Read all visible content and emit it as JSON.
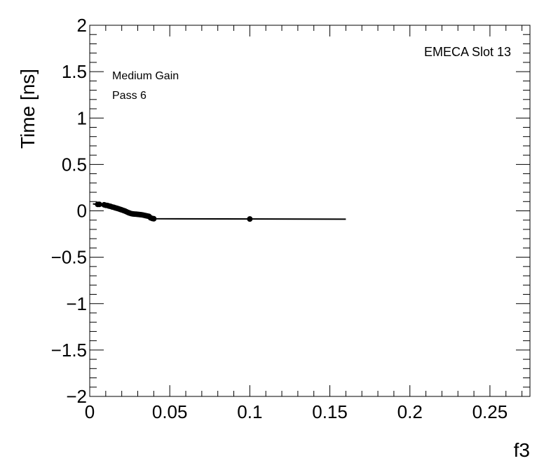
{
  "chart_data": {
    "type": "scatter",
    "title": "",
    "xlabel": "f3",
    "ylabel": "Time [ns]",
    "xlim": [
      0,
      0.275
    ],
    "ylim": [
      -2,
      2
    ],
    "x_ticks": [
      0,
      0.05,
      0.1,
      0.15,
      0.2,
      0.25
    ],
    "x_tick_labels": [
      "0",
      "0.05",
      "0.1",
      "0.15",
      "0.2",
      "0.25"
    ],
    "y_ticks": [
      -2,
      -1.5,
      -1,
      -0.5,
      0,
      0.5,
      1,
      1.5,
      2
    ],
    "y_tick_labels": [
      "−2",
      "−1.5",
      "−1",
      "−0.5",
      "0",
      "0.5",
      "1",
      "1.5",
      "2"
    ],
    "annotations": {
      "gain": "Medium Gain",
      "pass": "Pass 6",
      "slot": "EMECA Slot 13"
    },
    "grid": false,
    "series": [
      {
        "points": [
          [
            0.005,
            0.07
          ],
          [
            0.006,
            0.07
          ],
          [
            0.009,
            0.065
          ],
          [
            0.01,
            0.06
          ],
          [
            0.011,
            0.058
          ],
          [
            0.012,
            0.052
          ],
          [
            0.013,
            0.048
          ],
          [
            0.014,
            0.042
          ],
          [
            0.015,
            0.038
          ],
          [
            0.016,
            0.032
          ],
          [
            0.017,
            0.027
          ],
          [
            0.018,
            0.022
          ],
          [
            0.019,
            0.016
          ],
          [
            0.02,
            0.01
          ],
          [
            0.021,
            0.004
          ],
          [
            0.022,
            -0.002
          ],
          [
            0.023,
            -0.01
          ],
          [
            0.024,
            -0.018
          ],
          [
            0.025,
            -0.025
          ],
          [
            0.026,
            -0.03
          ],
          [
            0.027,
            -0.033
          ],
          [
            0.028,
            -0.035
          ],
          [
            0.029,
            -0.036
          ],
          [
            0.03,
            -0.038
          ],
          [
            0.031,
            -0.04
          ],
          [
            0.032,
            -0.042
          ],
          [
            0.033,
            -0.044
          ],
          [
            0.034,
            -0.048
          ],
          [
            0.035,
            -0.052
          ],
          [
            0.036,
            -0.056
          ],
          [
            0.037,
            -0.06
          ],
          [
            0.038,
            -0.075
          ],
          [
            0.039,
            -0.082
          ],
          [
            0.04,
            -0.085
          ],
          [
            0.1,
            -0.088
          ]
        ]
      }
    ],
    "fit_line": {
      "points": [
        [
          0.002,
          0.075
        ],
        [
          0.012,
          0.058
        ],
        [
          0.018,
          0.03
        ],
        [
          0.022,
          0.01
        ],
        [
          0.025,
          -0.03
        ],
        [
          0.03,
          -0.045
        ],
        [
          0.035,
          -0.06
        ],
        [
          0.038,
          -0.08
        ],
        [
          0.04,
          -0.085
        ],
        [
          0.16,
          -0.09
        ]
      ]
    }
  }
}
